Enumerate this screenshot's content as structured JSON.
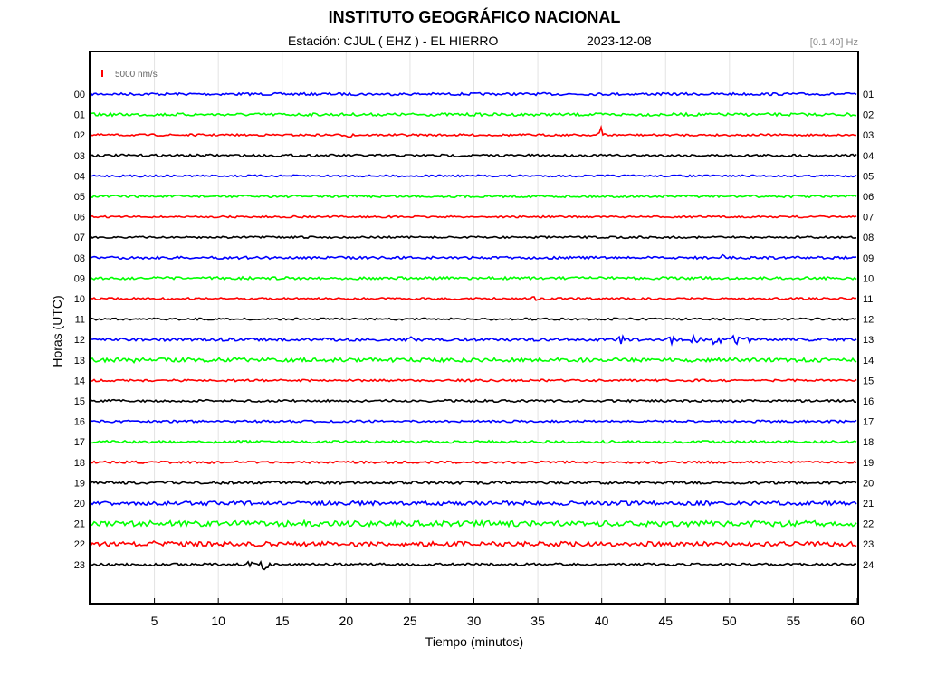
{
  "header": {
    "title": "INSTITUTO GEOGRÁFICO NACIONAL",
    "station": "Estación:  CJUL ( EHZ ) - EL HIERRO",
    "date": "2023-12-08",
    "filter": "[0.1 40] Hz"
  },
  "chart_data": {
    "type": "line",
    "title": "INSTITUTO GEOGRÁFICO NACIONAL",
    "xlabel": "Tiempo (minutos)",
    "ylabel": "Horas (UTC)",
    "xlim": [
      0,
      60
    ],
    "x_ticks": [
      5,
      10,
      15,
      20,
      25,
      30,
      35,
      40,
      45,
      50,
      55,
      60
    ],
    "grid": true,
    "scale_label": "5000 nm/s",
    "left_labels": [
      "00",
      "01",
      "02",
      "03",
      "04",
      "05",
      "06",
      "07",
      "08",
      "09",
      "10",
      "11",
      "12",
      "13",
      "14",
      "15",
      "16",
      "17",
      "18",
      "19",
      "20",
      "21",
      "22",
      "23"
    ],
    "right_labels": [
      "01",
      "02",
      "03",
      "04",
      "05",
      "06",
      "07",
      "08",
      "09",
      "10",
      "11",
      "12",
      "13",
      "14",
      "15",
      "16",
      "17",
      "18",
      "19",
      "20",
      "21",
      "22",
      "23",
      "24"
    ],
    "trace_colors": [
      "#0000ff",
      "#00ff00",
      "#ff0000",
      "#000000"
    ]
  }
}
